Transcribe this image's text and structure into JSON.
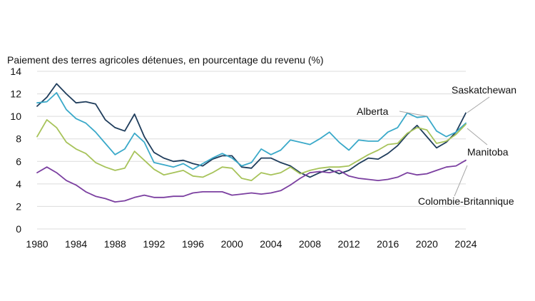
{
  "chart_data": {
    "type": "line",
    "ylabel": "Paiement des terres agricoles détenues, en pourcentage du revenu (%)",
    "xlim": [
      1980,
      2024
    ],
    "ylim": [
      0,
      14
    ],
    "x_ticks": [
      1980,
      1984,
      1988,
      1992,
      1996,
      2000,
      2004,
      2008,
      2012,
      2016,
      2020,
      2024
    ],
    "y_ticks": [
      0,
      2,
      4,
      6,
      8,
      10,
      12,
      14
    ],
    "grid": "horizontal",
    "legend": "direct labels at right",
    "x": [
      1980,
      1981,
      1982,
      1983,
      1984,
      1985,
      1986,
      1987,
      1988,
      1989,
      1990,
      1991,
      1992,
      1993,
      1994,
      1995,
      1996,
      1997,
      1998,
      1999,
      2000,
      2001,
      2002,
      2003,
      2004,
      2005,
      2006,
      2007,
      2008,
      2009,
      2010,
      2011,
      2012,
      2013,
      2014,
      2015,
      2016,
      2017,
      2018,
      2019,
      2020,
      2021,
      2022,
      2023,
      2024
    ],
    "series": [
      {
        "name": "Saskatchewan",
        "color": "#1f3d5c",
        "values": [
          10.9,
          11.7,
          12.9,
          12.0,
          11.2,
          11.3,
          11.1,
          9.7,
          9.0,
          8.7,
          10.2,
          8.2,
          6.8,
          6.3,
          6.0,
          6.1,
          5.8,
          5.6,
          6.2,
          6.5,
          6.5,
          5.5,
          5.4,
          6.3,
          6.3,
          5.9,
          5.6,
          5.0,
          4.6,
          5.0,
          5.3,
          4.9,
          5.2,
          5.8,
          6.3,
          6.2,
          6.7,
          7.4,
          8.4,
          9.2,
          8.2,
          7.2,
          7.7,
          8.6,
          10.3
        ]
      },
      {
        "name": "Alberta",
        "color": "#3aa9c9",
        "values": [
          11.2,
          11.3,
          12.1,
          10.6,
          9.8,
          9.4,
          8.6,
          7.6,
          6.6,
          7.1,
          8.5,
          7.7,
          5.9,
          5.7,
          5.5,
          5.8,
          5.3,
          5.8,
          6.3,
          6.7,
          6.3,
          5.6,
          5.9,
          7.1,
          6.6,
          7.0,
          7.9,
          7.7,
          7.5,
          8.0,
          8.6,
          7.7,
          7.0,
          7.9,
          7.8,
          7.8,
          8.6,
          9.0,
          10.3,
          9.9,
          10.0,
          8.7,
          8.2,
          8.6,
          9.4
        ]
      },
      {
        "name": "Manitoba",
        "color": "#a7c35a",
        "values": [
          8.2,
          9.7,
          9.0,
          7.7,
          7.1,
          6.7,
          5.9,
          5.5,
          5.2,
          5.4,
          6.9,
          6.1,
          5.3,
          4.8,
          5.0,
          5.2,
          4.7,
          4.6,
          5.0,
          5.5,
          5.4,
          4.5,
          4.3,
          5.0,
          4.8,
          5.0,
          5.5,
          4.9,
          5.2,
          5.4,
          5.5,
          5.5,
          5.6,
          6.1,
          6.6,
          7.0,
          7.5,
          7.6,
          8.5,
          9.0,
          8.8,
          7.6,
          7.8,
          8.4,
          9.3
        ]
      },
      {
        "name": "Colombie-Britannique",
        "color": "#7b3fa0",
        "values": [
          5.0,
          5.5,
          5.0,
          4.3,
          3.9,
          3.3,
          2.9,
          2.7,
          2.4,
          2.5,
          2.8,
          3.0,
          2.8,
          2.8,
          2.9,
          2.9,
          3.2,
          3.3,
          3.3,
          3.3,
          3.0,
          3.1,
          3.2,
          3.1,
          3.2,
          3.4,
          3.9,
          4.5,
          5.0,
          5.1,
          5.0,
          5.2,
          4.7,
          4.5,
          4.4,
          4.3,
          4.4,
          4.6,
          5.0,
          4.8,
          4.9,
          5.2,
          5.5,
          5.6,
          6.1
        ]
      }
    ]
  }
}
